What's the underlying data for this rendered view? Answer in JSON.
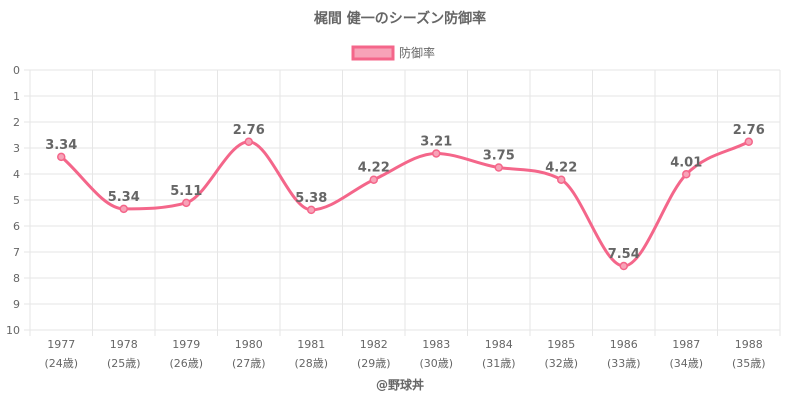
{
  "chart_data": {
    "type": "line",
    "title": "梶間 健一のシーズン防御率",
    "xlabel": "",
    "ylabel": "",
    "ylim": [
      0,
      10
    ],
    "y_reversed": true,
    "y_ticks": [
      "0",
      "1",
      "2",
      "3",
      "4",
      "5",
      "6",
      "7",
      "8",
      "9",
      "10"
    ],
    "grid": true,
    "legend": "top-center",
    "categories": [
      "1977",
      "1978",
      "1979",
      "1980",
      "1981",
      "1982",
      "1983",
      "1984",
      "1985",
      "1986",
      "1987",
      "1988"
    ],
    "category_sublabels": [
      "(24歳)",
      "(25歳)",
      "(26歳)",
      "(27歳)",
      "(28歳)",
      "(29歳)",
      "(30歳)",
      "(31歳)",
      "(32歳)",
      "(33歳)",
      "(34歳)",
      "(35歳)"
    ],
    "series": [
      {
        "name": "防御率",
        "color": "#f4668a",
        "fill": "#f7a3b8",
        "values": [
          3.34,
          5.34,
          5.11,
          2.76,
          5.38,
          4.22,
          3.21,
          3.75,
          4.22,
          7.54,
          4.01,
          2.76
        ],
        "labels": [
          "3.34",
          "5.34",
          "5.11",
          "2.76",
          "5.38",
          "4.22",
          "3.21",
          "3.75",
          "4.22",
          "7.54",
          "4.01",
          "2.76"
        ]
      }
    ],
    "credit": "@野球丼"
  }
}
